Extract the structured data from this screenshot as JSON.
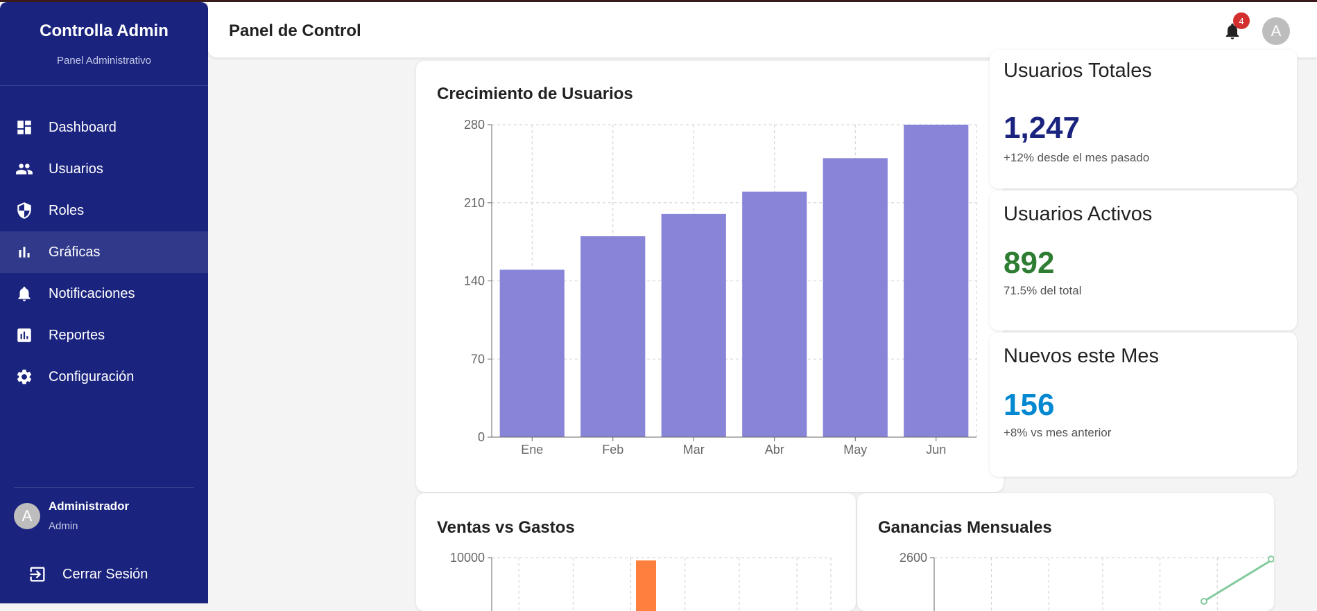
{
  "app": {
    "brand_title": "Controlla Admin",
    "brand_subtitle": "Panel Administrativo",
    "accent_color": "#1a237e"
  },
  "sidebar": {
    "items": [
      {
        "label": "Dashboard",
        "icon": "dashboard-icon"
      },
      {
        "label": "Usuarios",
        "icon": "people-icon"
      },
      {
        "label": "Roles",
        "icon": "shield-icon"
      },
      {
        "label": "Gráficas",
        "icon": "bar-chart-icon",
        "active": true
      },
      {
        "label": "Notificaciones",
        "icon": "bell-icon"
      },
      {
        "label": "Reportes",
        "icon": "report-icon"
      },
      {
        "label": "Configuración",
        "icon": "gear-icon"
      }
    ],
    "user": {
      "initial": "A",
      "name": "Administrador",
      "role": "Admin"
    },
    "logout_label": "Cerrar Sesión"
  },
  "header": {
    "title": "Panel de Control",
    "notification_count": "4",
    "avatar_initial": "A"
  },
  "stats": [
    {
      "label": "Usuarios Totales",
      "value": "1,247",
      "sub": "+12% desde el mes pasado",
      "color": "#1a237e"
    },
    {
      "label": "Usuarios Activos",
      "value": "892",
      "sub": "71.5% del total",
      "color": "#2e7d32"
    },
    {
      "label": "Nuevos este Mes",
      "value": "156",
      "sub": "+8% vs mes anterior",
      "color": "#0288d1"
    }
  ],
  "charts": {
    "growth_title": "Crecimiento de Usuarios",
    "sales_title": "Ventas vs Gastos",
    "profit_title": "Ganancias Mensuales"
  },
  "chart_data": [
    {
      "type": "bar",
      "title": "Crecimiento de Usuarios",
      "categories": [
        "Ene",
        "Feb",
        "Mar",
        "Abr",
        "May",
        "Jun"
      ],
      "values": [
        150,
        180,
        200,
        220,
        250,
        280
      ],
      "ylim": [
        0,
        280
      ],
      "yticks": [
        0,
        70,
        140,
        210,
        280
      ],
      "grid": true,
      "color": "#8884d8"
    },
    {
      "type": "bar",
      "title": "Ventas vs Gastos",
      "yticks": [
        10000
      ],
      "grid": true,
      "color": "#ff7f3f"
    },
    {
      "type": "line",
      "title": "Ganancias Mensuales",
      "yticks": [
        2600
      ],
      "grid": true,
      "color": "#82ca9d"
    }
  ]
}
